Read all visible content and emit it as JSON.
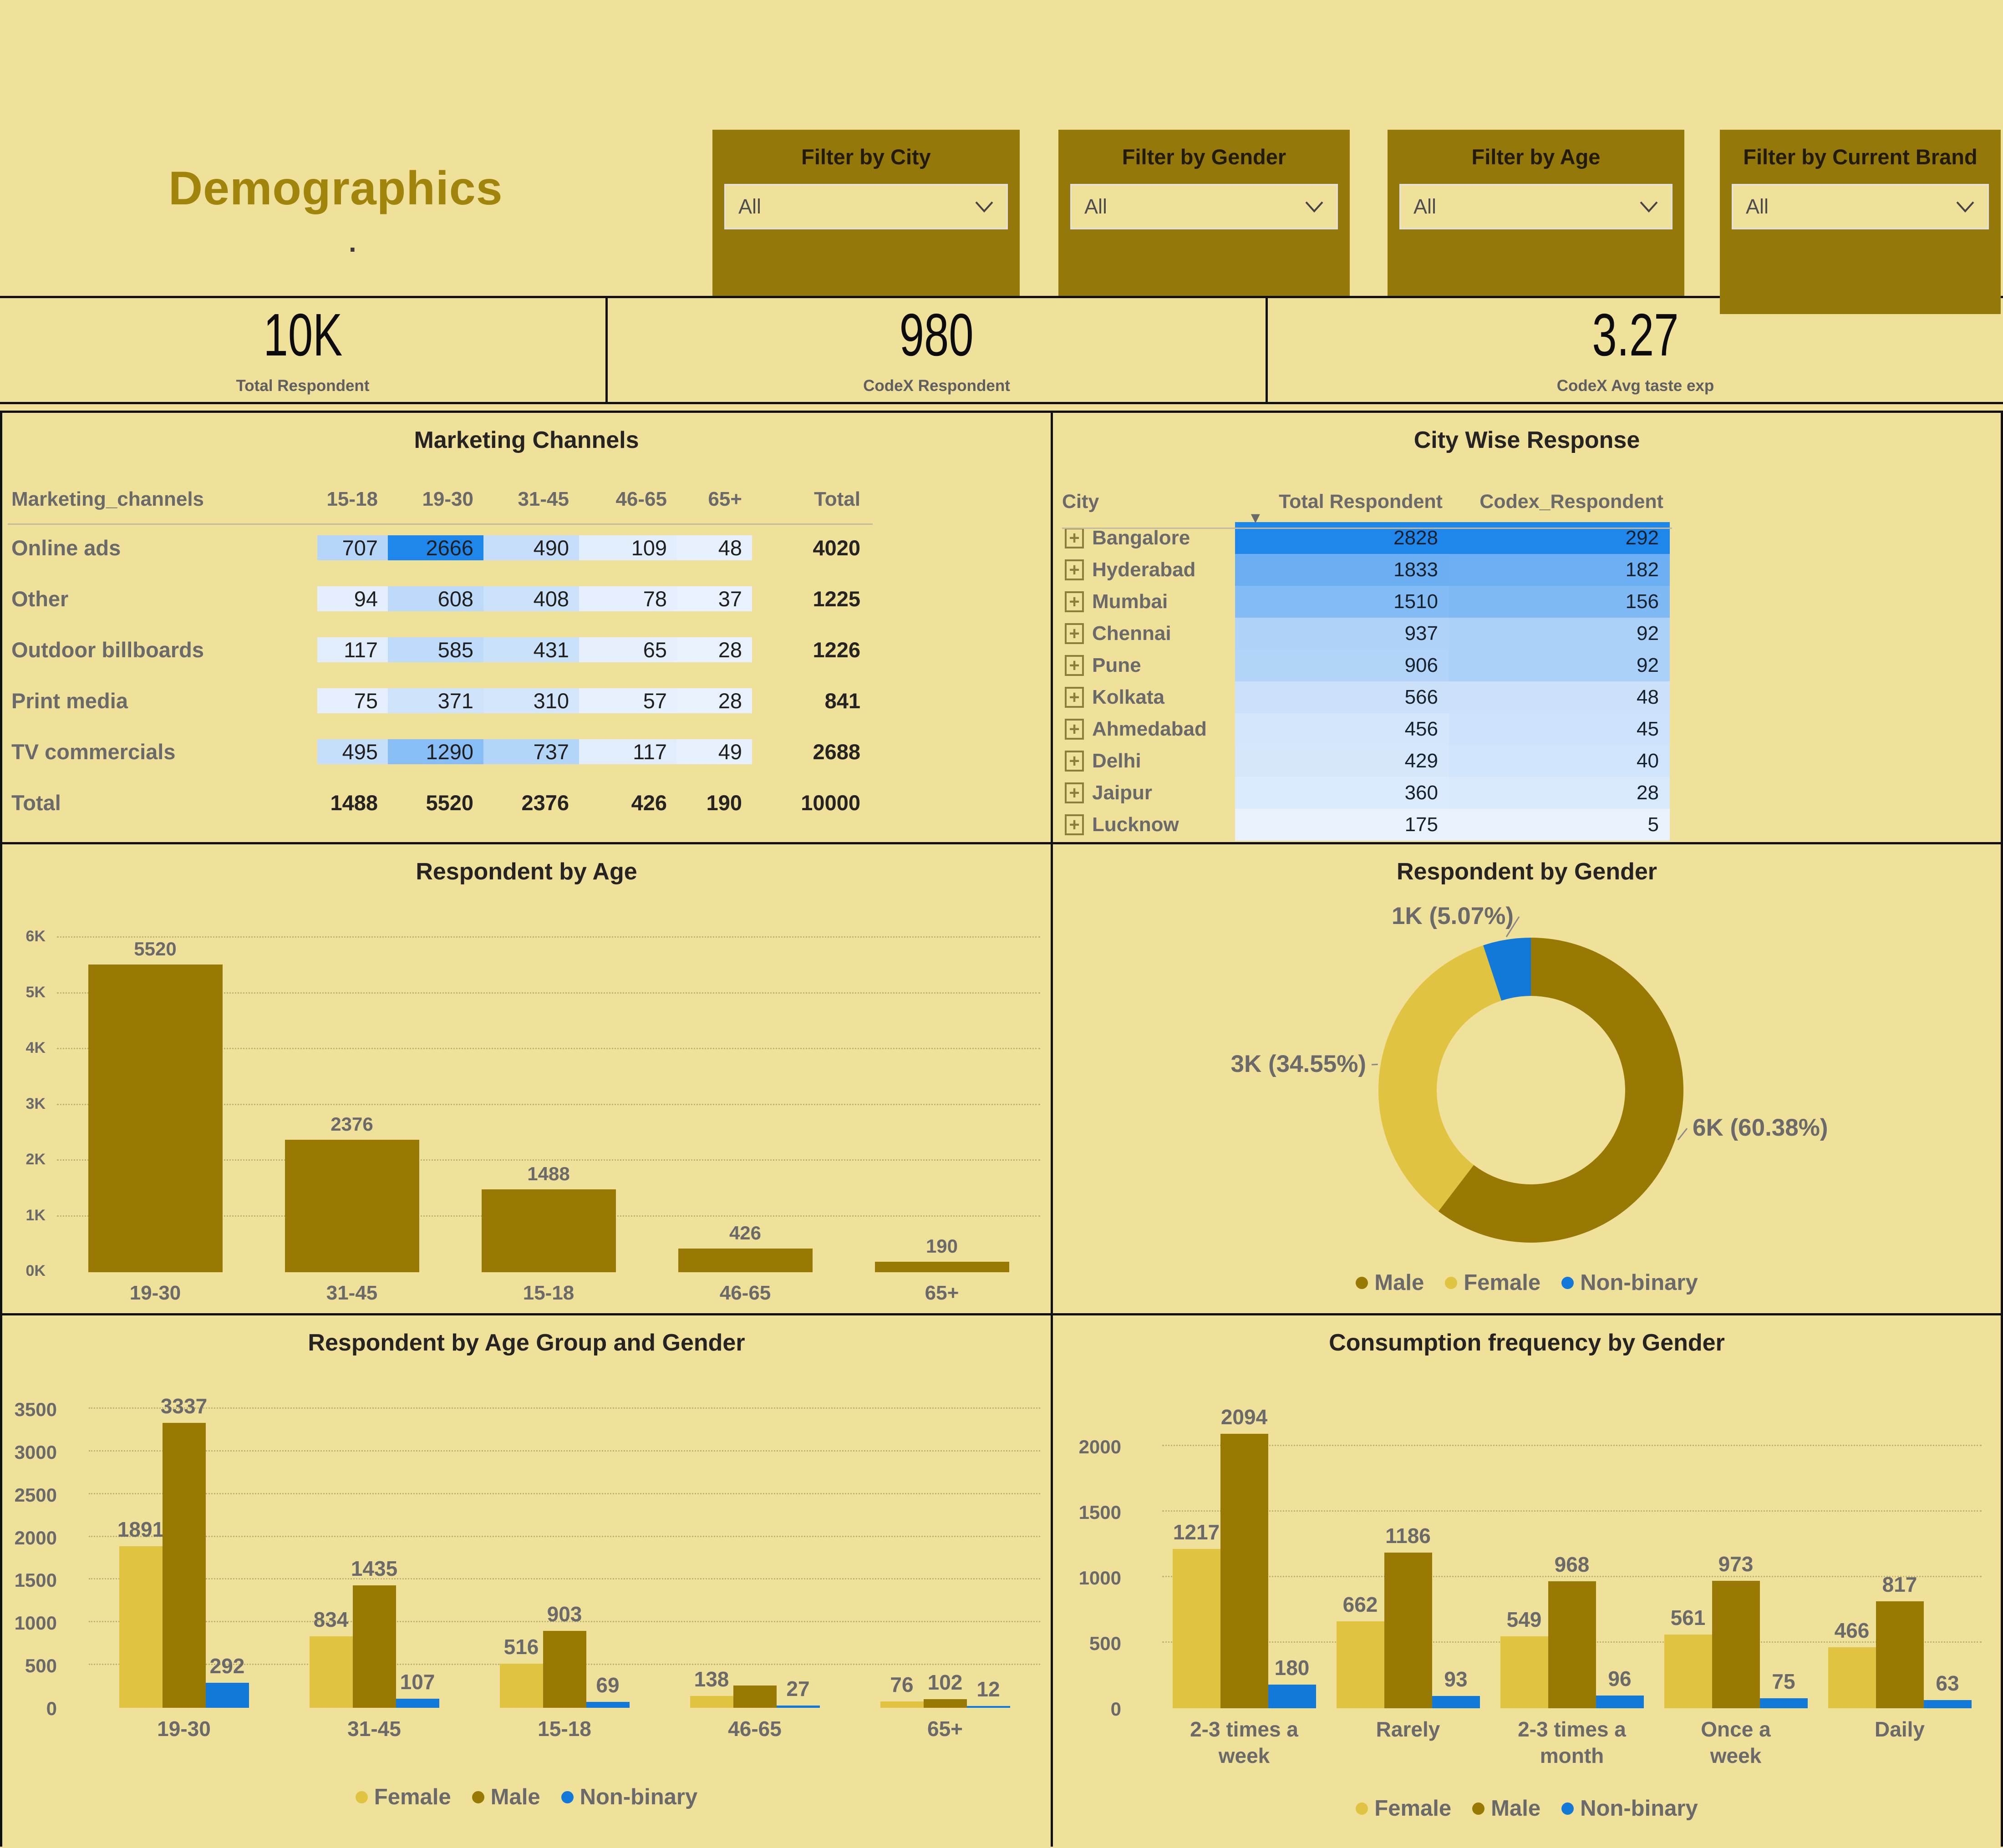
{
  "page": {
    "title": "Demographics",
    "title_dot": "."
  },
  "colors": {
    "background": "#EFE199",
    "panel_gold": "#95780A",
    "male": "#977903",
    "female": "#E0C340",
    "nonbinary": "#1379D8",
    "heat_light": "#E9F1FD",
    "heat_dark": "#1F87EC",
    "text_dark": "#252423",
    "text_grey": "#6A6A6A"
  },
  "filters": [
    {
      "label": "Filter by City",
      "value": "All"
    },
    {
      "label": "Filter by Gender",
      "value": "All"
    },
    {
      "label": "Filter by Age",
      "value": "All"
    },
    {
      "label": "Filter by Current Brand",
      "value": "All"
    }
  ],
  "kpis": [
    {
      "value": "10K",
      "label": "Total Respondent"
    },
    {
      "value": "980",
      "label": "CodeX Respondent"
    },
    {
      "value": "3.27",
      "label": "CodeX Avg taste exp"
    }
  ],
  "marketing_table": {
    "title": "Marketing Channels",
    "columns": [
      "Marketing_channels",
      "15-18",
      "19-30",
      "31-45",
      "46-65",
      "65+",
      "Total"
    ],
    "rows": [
      {
        "label": "Online ads",
        "values": [
          707,
          2666,
          490,
          109,
          48
        ],
        "total": 4020
      },
      {
        "label": "Other",
        "values": [
          94,
          608,
          408,
          78,
          37
        ],
        "total": 1225
      },
      {
        "label": "Outdoor billboards",
        "values": [
          117,
          585,
          431,
          65,
          28
        ],
        "total": 1226
      },
      {
        "label": "Print media",
        "values": [
          75,
          371,
          310,
          57,
          28
        ],
        "total": 841
      },
      {
        "label": "TV commercials",
        "values": [
          495,
          1290,
          737,
          117,
          49
        ],
        "total": 2688
      }
    ],
    "total_row": {
      "label": "Total",
      "values": [
        1488,
        5520,
        2376,
        426,
        190
      ],
      "total": 10000
    },
    "heat": {
      "min": 28,
      "max": 2666
    }
  },
  "city_table": {
    "title": "City Wise Response",
    "columns": [
      "City",
      "Total Respondent",
      "Codex_Respondent"
    ],
    "sort_icon": "▼",
    "expand_icon": "+",
    "rows": [
      {
        "city": "Bangalore",
        "total": 2828,
        "codex": 292
      },
      {
        "city": "Hyderabad",
        "total": 1833,
        "codex": 182
      },
      {
        "city": "Mumbai",
        "total": 1510,
        "codex": 156
      },
      {
        "city": "Chennai",
        "total": 937,
        "codex": 92
      },
      {
        "city": "Pune",
        "total": 906,
        "codex": 92
      },
      {
        "city": "Kolkata",
        "total": 566,
        "codex": 48
      },
      {
        "city": "Ahmedabad",
        "total": 456,
        "codex": 45
      },
      {
        "city": "Delhi",
        "total": 429,
        "codex": 40
      },
      {
        "city": "Jaipur",
        "total": 360,
        "codex": 28
      },
      {
        "city": "Lucknow",
        "total": 175,
        "codex": 5
      }
    ]
  },
  "chart_data": [
    {
      "type": "bar",
      "title": "Respondent by Age",
      "categories": [
        "19-30",
        "31-45",
        "15-18",
        "46-65",
        "65+"
      ],
      "values": [
        5520,
        2376,
        1488,
        426,
        190
      ],
      "ylim": [
        0,
        6000
      ],
      "yticks": [
        0,
        1000,
        2000,
        3000,
        4000,
        5000,
        6000
      ],
      "ytick_labels": [
        "0K",
        "1K",
        "2K",
        "3K",
        "4K",
        "5K",
        "6K"
      ],
      "grid": true,
      "series_color_key": "male"
    },
    {
      "type": "donut",
      "title": "Respondent by Gender",
      "series": [
        {
          "name": "Male",
          "value": 6038,
          "label": "6K (60.38%)",
          "color_key": "male"
        },
        {
          "name": "Female",
          "value": 3455,
          "label": "3K (34.55%)",
          "color_key": "female"
        },
        {
          "name": "Non-binary",
          "value": 507,
          "label": "1K (5.07%)",
          "color_key": "nonbinary"
        }
      ],
      "legend": [
        "Male",
        "Female",
        "Non-binary"
      ]
    },
    {
      "type": "grouped_bar",
      "title": "Respondent by Age Group and Gender",
      "categories": [
        "19-30",
        "31-45",
        "15-18",
        "46-65",
        "65+"
      ],
      "category_lines": [
        [
          "19-30"
        ],
        [
          "31-45"
        ],
        [
          "15-18"
        ],
        [
          "46-65"
        ],
        [
          "65+"
        ]
      ],
      "series": [
        {
          "name": "Female",
          "color_key": "female",
          "values": [
            1891,
            834,
            516,
            138,
            76
          ],
          "labels": [
            "1891",
            "834",
            "516",
            "138",
            "76"
          ]
        },
        {
          "name": "Male",
          "color_key": "male",
          "values": [
            3337,
            1435,
            903,
            261,
            102
          ],
          "labels": [
            "3337",
            "1435",
            "903",
            "",
            "102"
          ]
        },
        {
          "name": "Non-binary",
          "color_key": "nonbinary",
          "values": [
            292,
            107,
            69,
            27,
            12
          ],
          "labels": [
            "292",
            "107",
            "69",
            "27",
            "12"
          ]
        }
      ],
      "ylim": [
        0,
        3500
      ],
      "yticks": [
        0,
        500,
        1000,
        1500,
        2000,
        2500,
        3000,
        3500
      ],
      "legend": [
        "Female",
        "Male",
        "Non-binary"
      ]
    },
    {
      "type": "grouped_bar",
      "title": "Consumption frequency by Gender",
      "categories": [
        "2-3 times a week",
        "Rarely",
        "2-3 times a month",
        "Once a week",
        "Daily"
      ],
      "category_lines": [
        [
          "2-3 times a",
          "week"
        ],
        [
          "Rarely"
        ],
        [
          "2-3 times a",
          "month"
        ],
        [
          "Once a",
          "week"
        ],
        [
          "Daily"
        ]
      ],
      "series": [
        {
          "name": "Female",
          "color_key": "female",
          "values": [
            1217,
            662,
            549,
            561,
            466
          ],
          "labels": [
            "1217",
            "662",
            "549",
            "561",
            "466"
          ]
        },
        {
          "name": "Male",
          "color_key": "male",
          "values": [
            2094,
            1186,
            968,
            973,
            817
          ],
          "labels": [
            "2094",
            "1186",
            "968",
            "973",
            "817"
          ]
        },
        {
          "name": "Non-binary",
          "color_key": "nonbinary",
          "values": [
            180,
            93,
            96,
            75,
            63
          ],
          "labels": [
            "180",
            "93",
            "96",
            "75",
            "63"
          ]
        }
      ],
      "ylim": [
        0,
        2000
      ],
      "yticks": [
        0,
        500,
        1000,
        1500,
        2000
      ],
      "legend": [
        "Female",
        "Male",
        "Non-binary"
      ]
    }
  ]
}
